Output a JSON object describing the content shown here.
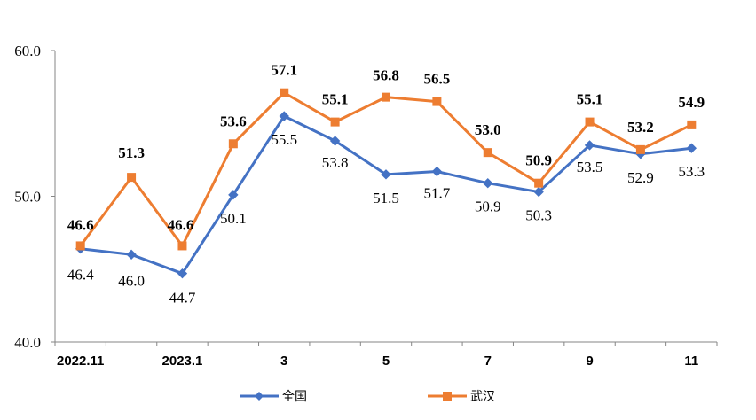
{
  "chart_data": {
    "type": "line",
    "categories": [
      "2022.11",
      "",
      "2023.1",
      "",
      "3",
      "",
      "5",
      "",
      "7",
      "",
      "9",
      "",
      "11"
    ],
    "ylim": [
      40,
      60
    ],
    "yticks": [
      "40.0",
      "50.0",
      "60.0"
    ],
    "grid": false,
    "legend_position": "bottom",
    "series": [
      {
        "name": "全国",
        "color": "#4472C4",
        "marker": "diamond",
        "values": [
          46.4,
          46.0,
          44.7,
          50.1,
          55.5,
          53.8,
          51.5,
          51.7,
          50.9,
          50.3,
          53.5,
          52.9,
          53.3
        ],
        "labels": [
          "46.4",
          "46.0",
          "44.7",
          "50.1",
          "55.5",
          "53.8",
          "51.5",
          "51.7",
          "50.9",
          "50.3",
          "53.5",
          "52.9",
          "53.3"
        ]
      },
      {
        "name": "武汉",
        "color": "#ED7D31",
        "marker": "square",
        "values": [
          46.6,
          51.3,
          46.6,
          53.6,
          57.1,
          55.1,
          56.8,
          56.5,
          53.0,
          50.9,
          55.1,
          53.2,
          54.9
        ],
        "labels": [
          "46.6",
          "51.3",
          "46.6",
          "53.6",
          "57.1",
          "55.1",
          "56.8",
          "56.5",
          "53.0",
          "50.9",
          "55.1",
          "53.2",
          "54.9"
        ]
      }
    ]
  }
}
